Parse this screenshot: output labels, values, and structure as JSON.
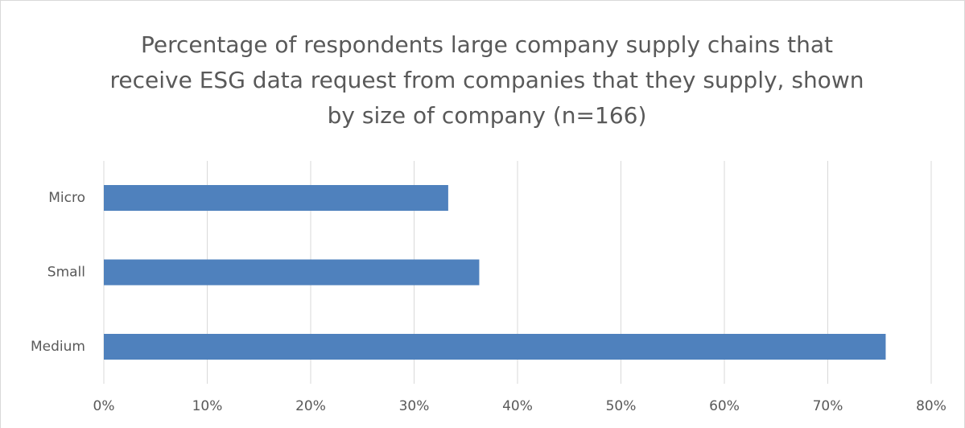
{
  "chart_data": {
    "type": "bar",
    "orientation": "horizontal",
    "title": "Percentage of respondents large company supply chains that receive ESG data request from companies that they supply, shown by size of company (n=166)",
    "categories": [
      "Micro",
      "Small",
      "Medium"
    ],
    "values": [
      33.3,
      36.3,
      75.6
    ],
    "color": "#4f81bd",
    "xlim": [
      0,
      80
    ],
    "xticks": [
      {
        "value": 0,
        "label": "0%"
      },
      {
        "value": 10,
        "label": "10%"
      },
      {
        "value": 20,
        "label": "20%"
      },
      {
        "value": 30,
        "label": "30%"
      },
      {
        "value": 40,
        "label": "40%"
      },
      {
        "value": 50,
        "label": "50%"
      },
      {
        "value": 60,
        "label": "60%"
      },
      {
        "value": 70,
        "label": "70%"
      },
      {
        "value": 80,
        "label": "80%"
      }
    ],
    "grid": true
  }
}
